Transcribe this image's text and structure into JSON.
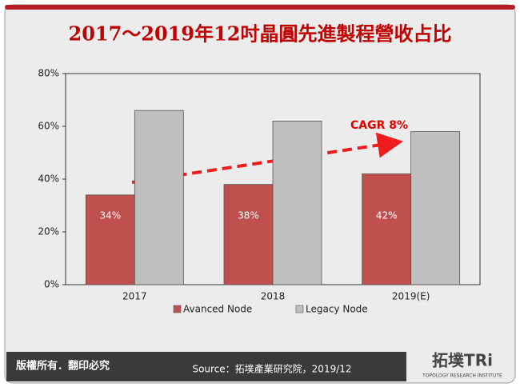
{
  "chart_data": {
    "type": "bar",
    "title": "2017～2019年12吋晶圓先進製程營收占比",
    "categories": [
      "2017",
      "2018",
      "2019(E)"
    ],
    "series": [
      {
        "name": "Avanced Node",
        "color": "#c0504d",
        "values": [
          34,
          38,
          42
        ],
        "value_labels": [
          "34%",
          "38%",
          "42%"
        ]
      },
      {
        "name": "Legacy Node",
        "color": "#bfbfbf",
        "values": [
          66,
          62,
          58
        ]
      }
    ],
    "ylim": [
      0,
      80
    ],
    "yticks": [
      {
        "value": 0,
        "label": "0%"
      },
      {
        "value": 20,
        "label": "20%"
      },
      {
        "value": 40,
        "label": "40%"
      },
      {
        "value": 60,
        "label": "60%"
      },
      {
        "value": 80,
        "label": "80%"
      }
    ],
    "annotation": "CAGR 8%"
  },
  "footer": {
    "rights": "版權所有．翻印必究",
    "source": "Source：拓墣產業研究院，2019/12",
    "logo": "拓墣TRi",
    "logo_sub": "TOPOLOGY RESEARCH INSTITUTE"
  }
}
